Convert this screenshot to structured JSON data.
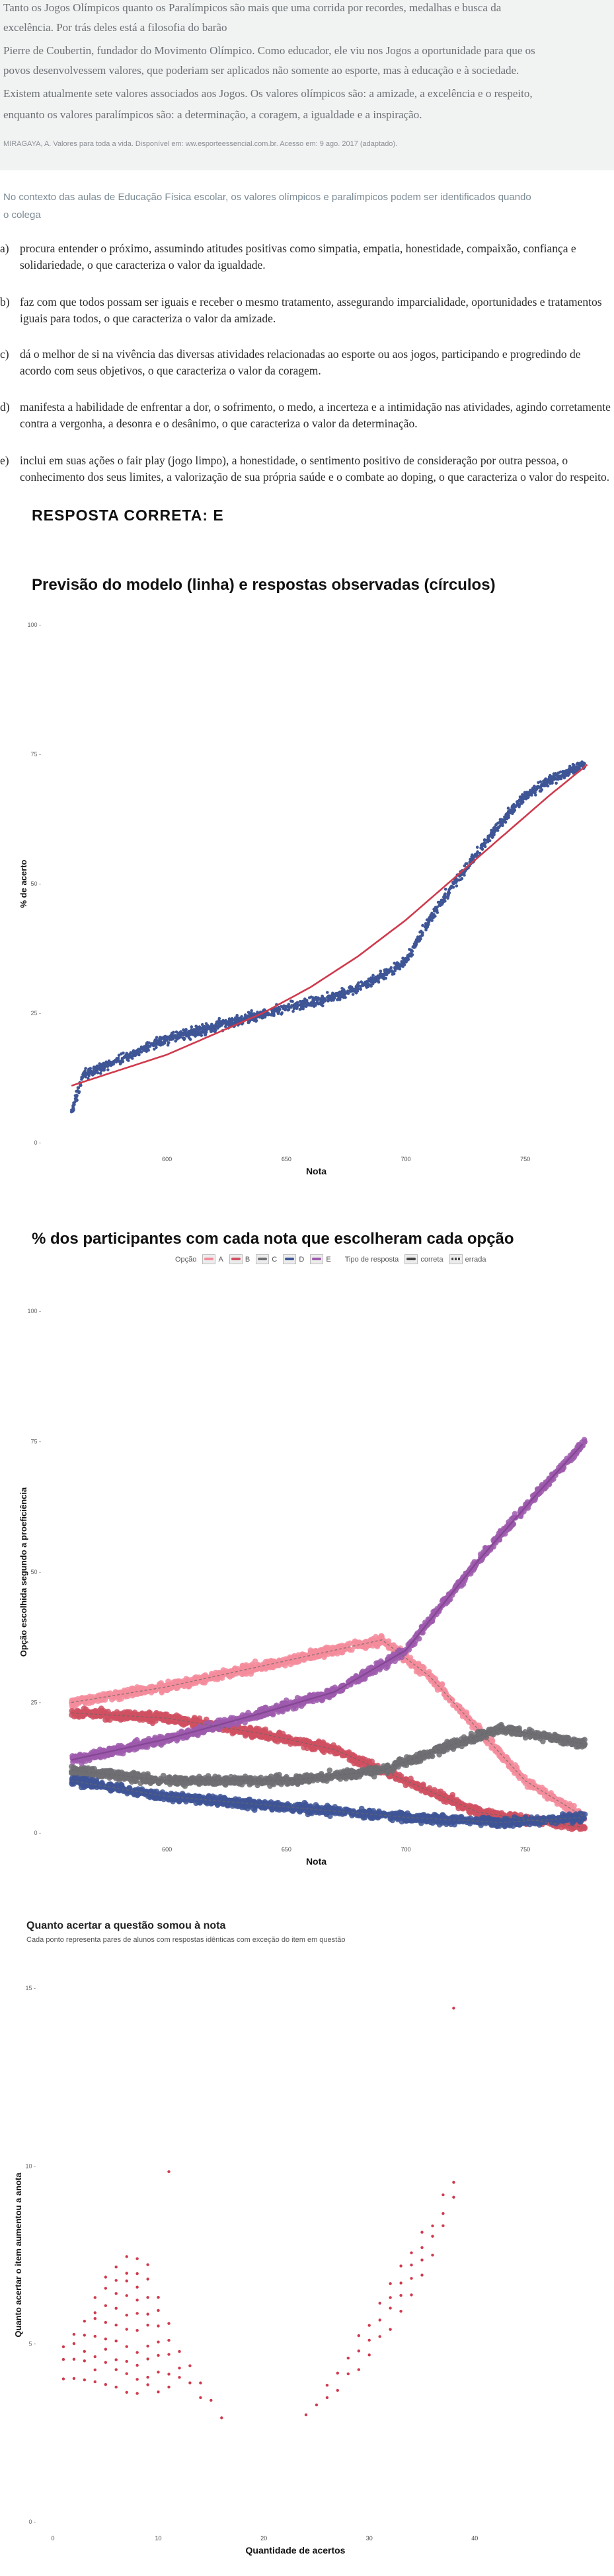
{
  "textbox": {
    "lines": [
      "Tanto os Jogos Olímpicos quanto os Paralímpicos são mais que uma corrida por recordes, medalhas e busca da",
      "excelência. Por trás deles está a filosofia do barão",
      "Pierre de Coubertin, fundador do Movimento Olímpico. Como educador, ele viu nos Jogos a oportunidade para que os",
      "povos desenvolvessem valores, que poderiam ser aplicados não somente ao esporte, mas à educação e à sociedade.",
      "Existem atualmente sete valores associados aos Jogos. Os valores olímpicos são: a amizade, a excelência e o respeito,",
      "enquanto os valores paralímpicos são: a determinação, a coragem, a igualdade e a inspiração."
    ],
    "reference": "MIRAGAYA, A. Valores para toda a vida. Disponível em: ww.esporteessencial.com.br. Acesso em: 9 ago. 2017 (adaptado)."
  },
  "stem": "No contexto das aulas de Educação Física escolar, os valores olímpicos e paralímpicos podem ser identificados quando o colega",
  "alternatives": [
    {
      "letter": "a)",
      "text": "procura entender o próximo, assumindo atitudes positivas como simpatia, empatia, honestidade, compaixão, confiança e solidariedade, o que caracteriza o valor da igualdade."
    },
    {
      "letter": "b)",
      "text": "faz com que todos possam ser iguais e receber o mesmo tratamento, assegurando imparcialidade, oportunidades e tratamentos iguais para todos, o que caracteriza o valor da amizade."
    },
    {
      "letter": "c)",
      "text": "dá o melhor de si na vivência das diversas atividades relacionadas ao esporte ou aos jogos, participando e progredindo de acordo com seus objetivos, o que caracteriza o valor da coragem."
    },
    {
      "letter": "d)",
      "text": "manifesta a habilidade de enfrentar a dor, o sofrimento, o medo, a incerteza e a intimidação nas atividades, agindo corretamente contra a vergonha, a desonra e o desânimo, o que caracteriza o valor da determinação."
    },
    {
      "letter": "e)",
      "text": "inclui em suas ações o fair play (jogo limpo), a honestidade, o sentimento positivo de consideração por outra pessoa, o conhecimento dos seus limites, a valorização de sua própria saúde e o combate ao doping, o que caracteriza o valor do respeito."
    }
  ],
  "answer": "RESPOSTA CORRETA: E",
  "colors": {
    "correct": "#9e5bad",
    "a": "#f48c9c",
    "b": "#d05062",
    "c": "#6f6f73",
    "d": "#3e5596",
    "model": "#cf3a4d",
    "points": "#3e5596",
    "dots3": "#cf3a4d"
  },
  "chart_data": [
    {
      "type": "scatter",
      "title": "Previsão do modelo (linha) e respostas observadas (círculos)",
      "xlabel": "Nota",
      "ylabel": "% de acerto",
      "xticks": [
        "600",
        "650",
        "700",
        "750"
      ],
      "yticks": [
        "0 -",
        "25 -",
        "50 -",
        "75 -",
        "100 -"
      ],
      "xlim": [
        550,
        775
      ],
      "ylim": [
        0,
        100
      ],
      "observed_trend": [
        [
          560,
          6
        ],
        [
          565,
          13
        ],
        [
          580,
          16
        ],
        [
          600,
          20
        ],
        [
          625,
          23
        ],
        [
          650,
          26
        ],
        [
          670,
          28
        ],
        [
          685,
          31
        ],
        [
          700,
          35
        ],
        [
          710,
          43
        ],
        [
          720,
          50
        ],
        [
          730,
          56
        ],
        [
          740,
          62
        ],
        [
          750,
          67
        ],
        [
          760,
          70
        ],
        [
          775,
          73
        ]
      ],
      "model_line": [
        [
          560,
          11
        ],
        [
          580,
          14
        ],
        [
          600,
          17
        ],
        [
          620,
          21
        ],
        [
          640,
          25
        ],
        [
          660,
          30
        ],
        [
          680,
          36
        ],
        [
          700,
          43
        ],
        [
          720,
          51
        ],
        [
          740,
          59
        ],
        [
          760,
          67
        ],
        [
          776,
          73
        ]
      ]
    },
    {
      "type": "scatter",
      "title": "% dos participantes com cada nota que escolheram cada opção",
      "xlabel": "Nota",
      "ylabel": "Opção escolhida segundo a proeficiência",
      "xticks": [
        "600",
        "650",
        "700",
        "750"
      ],
      "yticks": [
        "0 -",
        "25 -",
        "50 -",
        "75 -",
        "100 -"
      ],
      "xlim": [
        550,
        775
      ],
      "ylim": [
        0,
        100
      ],
      "legend": {
        "option_label": "Opção",
        "options": [
          "A",
          "B",
          "C",
          "D",
          "E"
        ],
        "type_label": "Tipo de resposta",
        "types": [
          "correta",
          "errada"
        ]
      },
      "series": [
        {
          "name": "A",
          "values": [
            [
              560,
              25
            ],
            [
              600,
              28
            ],
            [
              640,
              32
            ],
            [
              670,
              35
            ],
            [
              690,
              37
            ],
            [
              710,
              30
            ],
            [
              730,
              20
            ],
            [
              750,
              10
            ],
            [
              775,
              3
            ]
          ]
        },
        {
          "name": "B",
          "values": [
            [
              560,
              23
            ],
            [
              600,
              22
            ],
            [
              640,
              19
            ],
            [
              670,
              16
            ],
            [
              700,
              10
            ],
            [
              730,
              4
            ],
            [
              775,
              1
            ]
          ]
        },
        {
          "name": "C",
          "values": [
            [
              560,
              12
            ],
            [
              600,
              10
            ],
            [
              650,
              10
            ],
            [
              690,
              12
            ],
            [
              720,
              17
            ],
            [
              740,
              20
            ],
            [
              775,
              17
            ]
          ]
        },
        {
          "name": "D",
          "values": [
            [
              560,
              10
            ],
            [
              600,
              7
            ],
            [
              650,
              5
            ],
            [
              700,
              3
            ],
            [
              740,
              2
            ],
            [
              775,
              3
            ]
          ]
        },
        {
          "name": "E",
          "values": [
            [
              560,
              14
            ],
            [
              600,
              18
            ],
            [
              640,
              23
            ],
            [
              670,
              27
            ],
            [
              700,
              35
            ],
            [
              730,
              52
            ],
            [
              755,
              65
            ],
            [
              775,
              75
            ]
          ]
        }
      ]
    },
    {
      "type": "scatter",
      "title": "Quanto acertar a questão somou à nota",
      "subtitle": "Cada ponto representa pares de alunos com respostas idênticas com exceção do item em questão",
      "xlabel": "Quantidade de acertos",
      "ylabel": "Quanto acertar o item aumentou a anota",
      "xticks": [
        "0",
        "10",
        "20",
        "30",
        "40"
      ],
      "yticks": [
        "0 -",
        "5 -",
        "10 -",
        "15 -"
      ],
      "xlim": [
        -1,
        47
      ],
      "ylim": [
        0,
        16
      ],
      "trend": [
        [
          1,
          4.8
        ],
        [
          3,
          5.2
        ],
        [
          5,
          5.8
        ],
        [
          7,
          6
        ],
        [
          9,
          5.8
        ],
        [
          11,
          5
        ],
        [
          14,
          4
        ],
        [
          16,
          3.2
        ],
        [
          24,
          3.3
        ],
        [
          27,
          4.2
        ],
        [
          30,
          5.5
        ],
        [
          33,
          7
        ],
        [
          36,
          8.5
        ],
        [
          38,
          10
        ]
      ],
      "outliers": [
        [
          11,
          10.5
        ],
        [
          38,
          15.4
        ]
      ]
    }
  ]
}
